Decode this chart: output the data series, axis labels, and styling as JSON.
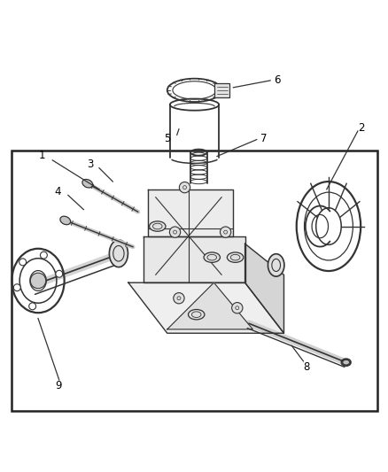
{
  "background_color": "#ffffff",
  "line_color": "#333333",
  "text_color": "#000000"
}
